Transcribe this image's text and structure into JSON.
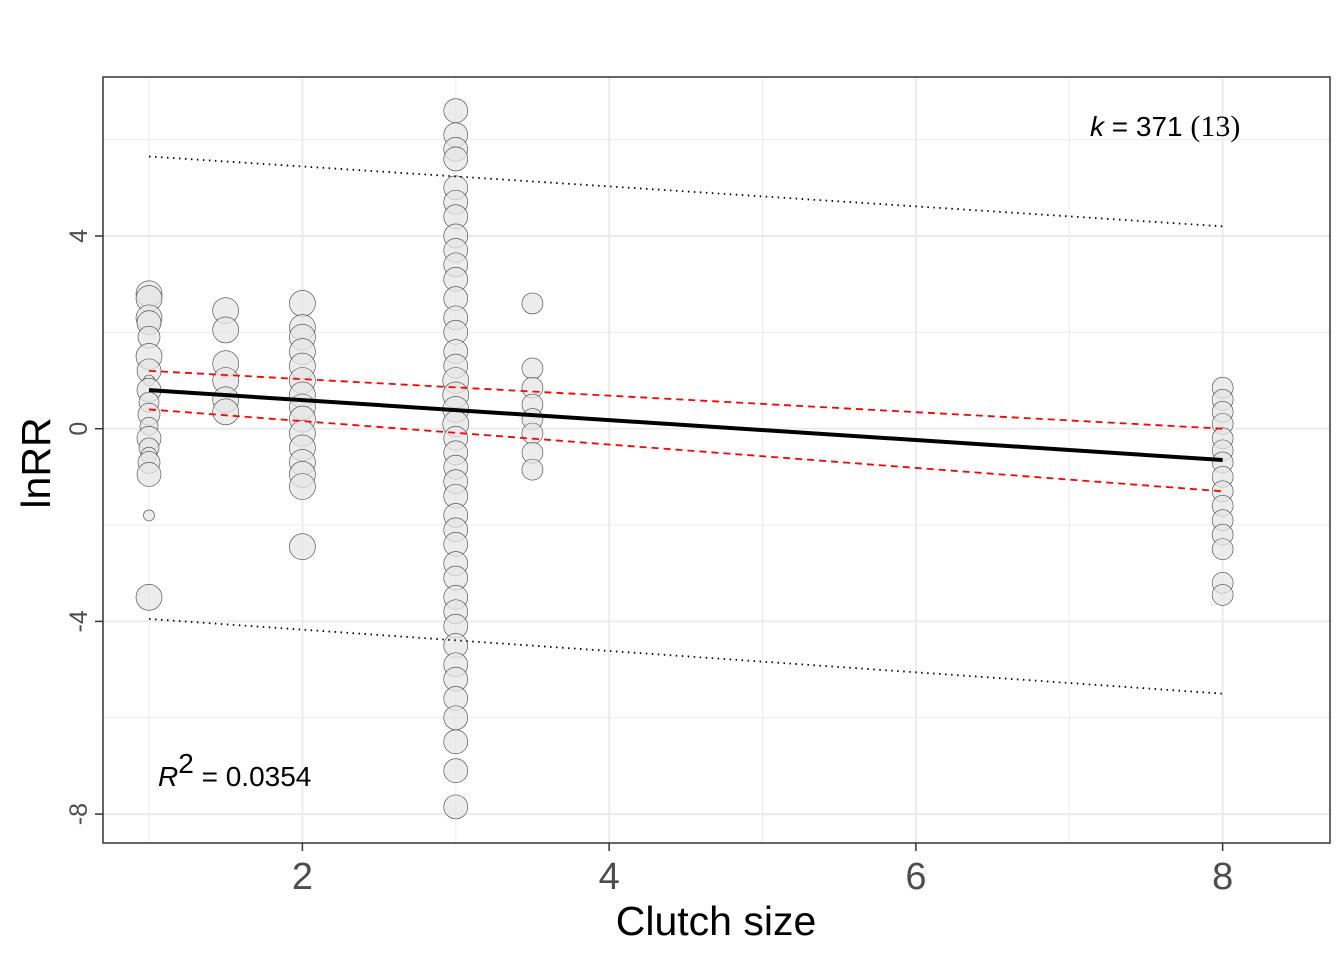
{
  "chart_data": {
    "type": "scatter",
    "xlabel": "Clutch size",
    "ylabel": "lnRR",
    "xlim": [
      0.7,
      8.7
    ],
    "ylim": [
      -8.6,
      7.3
    ],
    "x_ticks": [
      2,
      4,
      6,
      8
    ],
    "x_minor": [
      1,
      3,
      5,
      7
    ],
    "y_ticks": [
      -8,
      -4,
      0,
      4
    ],
    "y_minor": [
      -6,
      -2,
      2,
      6
    ],
    "grid": true,
    "annotations": {
      "k_label": "k",
      "k_equals": " = 371 ",
      "k_groups": "(13)",
      "r2_label": "R",
      "r2_sup": "2",
      "r2_value": " = 0.0354"
    },
    "colors": {
      "point_fill": "#e6e6e6",
      "point_stroke": "#404040",
      "fit": "#000000",
      "ci": "#ff0000",
      "pi": "#000000",
      "grid": "#ebebeb"
    },
    "fit_line": [
      [
        1,
        0.8
      ],
      [
        8,
        -0.65
      ]
    ],
    "ci_upper": [
      [
        1,
        1.2
      ],
      [
        8,
        0.0
      ]
    ],
    "ci_lower": [
      [
        1,
        0.4
      ],
      [
        8,
        -1.3
      ]
    ],
    "pi_upper": [
      [
        1,
        5.65
      ],
      [
        8,
        4.2
      ]
    ],
    "pi_lower": [
      [
        1,
        -3.95
      ],
      [
        8,
        -5.5
      ]
    ],
    "points": [
      {
        "x": 1,
        "y": 2.8,
        "s": 1.0
      },
      {
        "x": 1,
        "y": 2.7,
        "s": 1.0
      },
      {
        "x": 1,
        "y": 2.3,
        "s": 1.0
      },
      {
        "x": 1,
        "y": 2.2,
        "s": 0.9
      },
      {
        "x": 1,
        "y": 1.9,
        "s": 0.8
      },
      {
        "x": 1,
        "y": 1.5,
        "s": 1.0
      },
      {
        "x": 1,
        "y": 1.2,
        "s": 0.9
      },
      {
        "x": 1,
        "y": 1.0,
        "s": 0.25
      },
      {
        "x": 1,
        "y": 0.8,
        "s": 0.9
      },
      {
        "x": 1,
        "y": 0.55,
        "s": 0.7
      },
      {
        "x": 1,
        "y": 0.3,
        "s": 0.8
      },
      {
        "x": 1,
        "y": 0.05,
        "s": 0.6
      },
      {
        "x": 1,
        "y": -0.2,
        "s": 0.9
      },
      {
        "x": 1,
        "y": -0.4,
        "s": 0.7
      },
      {
        "x": 1,
        "y": -0.55,
        "s": 0.5
      },
      {
        "x": 1,
        "y": -0.7,
        "s": 0.8
      },
      {
        "x": 1,
        "y": -0.95,
        "s": 0.9
      },
      {
        "x": 1,
        "y": -1.8,
        "s": 0.25
      },
      {
        "x": 1,
        "y": -3.5,
        "s": 1.0
      },
      {
        "x": 1.5,
        "y": 2.45,
        "s": 1.0
      },
      {
        "x": 1.5,
        "y": 2.05,
        "s": 1.0
      },
      {
        "x": 1.5,
        "y": 1.35,
        "s": 1.0
      },
      {
        "x": 1.5,
        "y": 1.0,
        "s": 1.0
      },
      {
        "x": 1.5,
        "y": 0.6,
        "s": 1.0
      },
      {
        "x": 1.5,
        "y": 0.35,
        "s": 1.0
      },
      {
        "x": 2,
        "y": 2.6,
        "s": 1.0
      },
      {
        "x": 2,
        "y": 2.1,
        "s": 1.0
      },
      {
        "x": 2,
        "y": 1.9,
        "s": 1.0
      },
      {
        "x": 2,
        "y": 1.6,
        "s": 1.0
      },
      {
        "x": 2,
        "y": 1.3,
        "s": 1.0
      },
      {
        "x": 2,
        "y": 1.0,
        "s": 1.0
      },
      {
        "x": 2,
        "y": 0.7,
        "s": 1.0
      },
      {
        "x": 2,
        "y": 0.45,
        "s": 1.0
      },
      {
        "x": 2,
        "y": 0.2,
        "s": 1.0
      },
      {
        "x": 2,
        "y": -0.1,
        "s": 1.0
      },
      {
        "x": 2,
        "y": -0.4,
        "s": 1.0
      },
      {
        "x": 2,
        "y": -0.7,
        "s": 1.0
      },
      {
        "x": 2,
        "y": -0.95,
        "s": 1.0
      },
      {
        "x": 2,
        "y": -1.2,
        "s": 1.0
      },
      {
        "x": 2,
        "y": -2.45,
        "s": 1.0
      },
      {
        "x": 3,
        "y": 6.6,
        "s": 0.9
      },
      {
        "x": 3,
        "y": 6.1,
        "s": 0.9
      },
      {
        "x": 3,
        "y": 5.8,
        "s": 0.9
      },
      {
        "x": 3,
        "y": 5.6,
        "s": 0.9
      },
      {
        "x": 3,
        "y": 5.0,
        "s": 0.9
      },
      {
        "x": 3,
        "y": 4.7,
        "s": 0.9
      },
      {
        "x": 3,
        "y": 4.4,
        "s": 0.9
      },
      {
        "x": 3,
        "y": 4.0,
        "s": 0.9
      },
      {
        "x": 3,
        "y": 3.7,
        "s": 0.9
      },
      {
        "x": 3,
        "y": 3.4,
        "s": 0.9
      },
      {
        "x": 3,
        "y": 3.1,
        "s": 0.9
      },
      {
        "x": 3,
        "y": 2.7,
        "s": 0.9
      },
      {
        "x": 3,
        "y": 2.3,
        "s": 0.9
      },
      {
        "x": 3,
        "y": 2.0,
        "s": 0.9
      },
      {
        "x": 3,
        "y": 1.6,
        "s": 0.9
      },
      {
        "x": 3,
        "y": 1.3,
        "s": 0.9
      },
      {
        "x": 3,
        "y": 1.0,
        "s": 1.0
      },
      {
        "x": 3,
        "y": 0.7,
        "s": 1.0
      },
      {
        "x": 3,
        "y": 0.4,
        "s": 1.0
      },
      {
        "x": 3,
        "y": 0.1,
        "s": 1.0
      },
      {
        "x": 3,
        "y": -0.2,
        "s": 0.9
      },
      {
        "x": 3,
        "y": -0.5,
        "s": 0.9
      },
      {
        "x": 3,
        "y": -0.8,
        "s": 0.9
      },
      {
        "x": 3,
        "y": -1.1,
        "s": 0.9
      },
      {
        "x": 3,
        "y": -1.4,
        "s": 0.9
      },
      {
        "x": 3,
        "y": -1.8,
        "s": 0.9
      },
      {
        "x": 3,
        "y": -2.1,
        "s": 0.9
      },
      {
        "x": 3,
        "y": -2.4,
        "s": 0.9
      },
      {
        "x": 3,
        "y": -2.8,
        "s": 0.9
      },
      {
        "x": 3,
        "y": -3.1,
        "s": 0.9
      },
      {
        "x": 3,
        "y": -3.5,
        "s": 0.9
      },
      {
        "x": 3,
        "y": -3.8,
        "s": 0.9
      },
      {
        "x": 3,
        "y": -4.1,
        "s": 0.9
      },
      {
        "x": 3,
        "y": -4.5,
        "s": 0.9
      },
      {
        "x": 3,
        "y": -4.9,
        "s": 0.9
      },
      {
        "x": 3,
        "y": -5.2,
        "s": 0.9
      },
      {
        "x": 3,
        "y": -5.6,
        "s": 0.9
      },
      {
        "x": 3,
        "y": -6.0,
        "s": 0.9
      },
      {
        "x": 3,
        "y": -6.5,
        "s": 0.9
      },
      {
        "x": 3,
        "y": -7.1,
        "s": 0.9
      },
      {
        "x": 3,
        "y": -7.85,
        "s": 0.9
      },
      {
        "x": 3.5,
        "y": 2.6,
        "s": 0.75
      },
      {
        "x": 3.5,
        "y": 1.25,
        "s": 0.75
      },
      {
        "x": 3.5,
        "y": 0.85,
        "s": 0.75
      },
      {
        "x": 3.5,
        "y": 0.5,
        "s": 0.75
      },
      {
        "x": 3.5,
        "y": 0.2,
        "s": 0.75
      },
      {
        "x": 3.5,
        "y": -0.1,
        "s": 0.75
      },
      {
        "x": 3.5,
        "y": -0.5,
        "s": 0.75
      },
      {
        "x": 3.5,
        "y": -0.85,
        "s": 0.75
      },
      {
        "x": 8,
        "y": 0.85,
        "s": 0.75
      },
      {
        "x": 8,
        "y": 0.6,
        "s": 0.75
      },
      {
        "x": 8,
        "y": 0.35,
        "s": 0.75
      },
      {
        "x": 8,
        "y": 0.1,
        "s": 0.75
      },
      {
        "x": 8,
        "y": -0.2,
        "s": 0.75
      },
      {
        "x": 8,
        "y": -0.45,
        "s": 0.75
      },
      {
        "x": 8,
        "y": -0.7,
        "s": 0.75
      },
      {
        "x": 8,
        "y": -1.0,
        "s": 0.75
      },
      {
        "x": 8,
        "y": -1.3,
        "s": 0.75
      },
      {
        "x": 8,
        "y": -1.6,
        "s": 0.75
      },
      {
        "x": 8,
        "y": -1.9,
        "s": 0.75
      },
      {
        "x": 8,
        "y": -2.2,
        "s": 0.75
      },
      {
        "x": 8,
        "y": -2.5,
        "s": 0.75
      },
      {
        "x": 8,
        "y": -3.2,
        "s": 0.75
      },
      {
        "x": 8,
        "y": -3.45,
        "s": 0.75
      }
    ]
  }
}
